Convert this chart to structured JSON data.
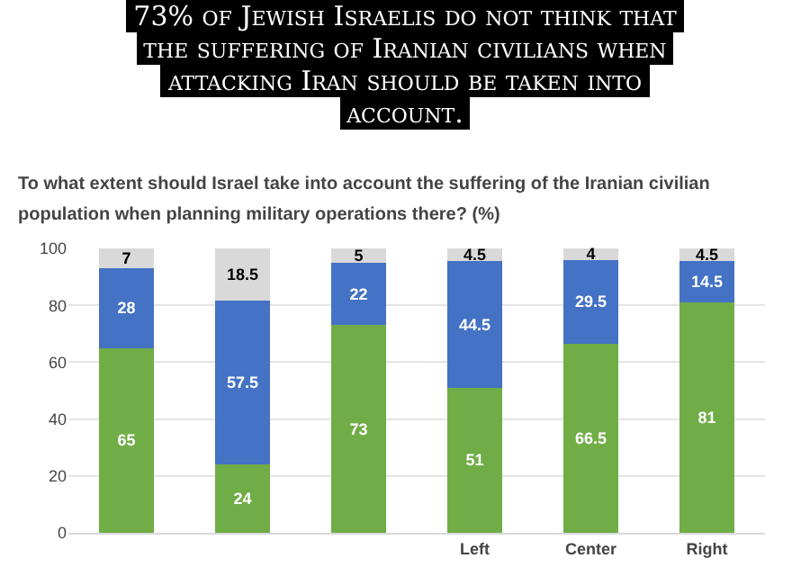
{
  "chart_data": {
    "type": "bar",
    "stacked": true,
    "title": "73% of Jewish Israelis do not think that the suffering of Iranian civilians when attacking Iran should be taken into account.",
    "subtitle": "To what extent should Israel take into account the suffering of the Iranian civilian population when planning military operations there? (%)",
    "categories": [
      null,
      null,
      null,
      "Left",
      "Center",
      "Right"
    ],
    "series": [
      {
        "color": "#70ad47",
        "values": [
          65,
          24,
          73,
          51,
          66.5,
          81
        ]
      },
      {
        "color": "#4472c4",
        "values": [
          28,
          57.5,
          22,
          44.5,
          29.5,
          14.5
        ]
      },
      {
        "color": "#d9d9d9",
        "values": [
          7,
          18.5,
          5,
          4.5,
          4,
          4.5
        ]
      }
    ],
    "ylim": [
      0,
      100
    ],
    "yticks": [
      0,
      20,
      40,
      60,
      80,
      100
    ],
    "grid": "y",
    "data_labels": true,
    "legend": false
  }
}
